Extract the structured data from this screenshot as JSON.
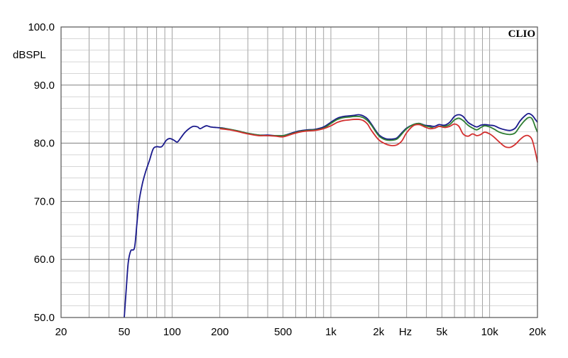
{
  "chart_data": {
    "type": "line",
    "logo": "CLIO",
    "ylabel": "dBSPL",
    "xlabel": "Hz",
    "xscale": "log",
    "xlim": [
      20,
      20000
    ],
    "ylim": [
      50,
      100
    ],
    "grid": true,
    "y_ticks": [
      {
        "value": 100,
        "label": "100.0"
      },
      {
        "value": 90,
        "label": "90.0"
      },
      {
        "value": 80,
        "label": "80.0"
      },
      {
        "value": 70,
        "label": "70.0"
      },
      {
        "value": 60,
        "label": "60.0"
      },
      {
        "value": 50,
        "label": "50.0"
      }
    ],
    "x_ticks": [
      {
        "value": 20,
        "label": "20"
      },
      {
        "value": 50,
        "label": "50"
      },
      {
        "value": 100,
        "label": "100"
      },
      {
        "value": 200,
        "label": "200"
      },
      {
        "value": 500,
        "label": "500"
      },
      {
        "value": 1000,
        "label": "1k"
      },
      {
        "value": 2000,
        "label": "2k"
      },
      {
        "value": 5000,
        "label": "5k"
      },
      {
        "value": 10000,
        "label": "10k"
      },
      {
        "value": 20000,
        "label": "20k"
      }
    ],
    "series": [
      {
        "color": "#1a1a8c",
        "points": [
          [
            50,
            50
          ],
          [
            51.5,
            55
          ],
          [
            53,
            59.5
          ],
          [
            55,
            61.5
          ],
          [
            58,
            62
          ],
          [
            60,
            66
          ],
          [
            62,
            70
          ],
          [
            65,
            73
          ],
          [
            68,
            75
          ],
          [
            72,
            77
          ],
          [
            76,
            79
          ],
          [
            80,
            79.4
          ],
          [
            86,
            79.4
          ],
          [
            92,
            80.5
          ],
          [
            97,
            80.8
          ],
          [
            103,
            80.5
          ],
          [
            108,
            80.2
          ],
          [
            114,
            81
          ],
          [
            120,
            81.8
          ],
          [
            128,
            82.5
          ],
          [
            136,
            82.9
          ],
          [
            145,
            82.8
          ],
          [
            150,
            82.5
          ],
          [
            158,
            82.8
          ],
          [
            165,
            83
          ],
          [
            175,
            82.8
          ],
          [
            190,
            82.7
          ],
          [
            210,
            82.6
          ],
          [
            230,
            82.4
          ],
          [
            260,
            82.1
          ],
          [
            300,
            81.7
          ],
          [
            350,
            81.4
          ],
          [
            400,
            81.4
          ],
          [
            450,
            81.3
          ],
          [
            500,
            81.3
          ],
          [
            560,
            81.7
          ],
          [
            630,
            82.1
          ],
          [
            710,
            82.3
          ],
          [
            800,
            82.4
          ],
          [
            900,
            82.8
          ],
          [
            1000,
            83.6
          ],
          [
            1100,
            84.3
          ],
          [
            1200,
            84.6
          ],
          [
            1300,
            84.7
          ],
          [
            1400,
            84.8
          ],
          [
            1500,
            84.9
          ],
          [
            1600,
            84.7
          ],
          [
            1700,
            84.2
          ],
          [
            1800,
            83.3
          ],
          [
            2000,
            81.5
          ],
          [
            2200,
            80.8
          ],
          [
            2400,
            80.7
          ],
          [
            2600,
            80.9
          ],
          [
            2800,
            81.8
          ],
          [
            3000,
            82.6
          ],
          [
            3300,
            83.2
          ],
          [
            3600,
            83.4
          ],
          [
            3900,
            83.1
          ],
          [
            4200,
            83
          ],
          [
            4500,
            82.9
          ],
          [
            4800,
            83.2
          ],
          [
            5200,
            83.1
          ],
          [
            5600,
            83.6
          ],
          [
            6000,
            84.6
          ],
          [
            6400,
            84.9
          ],
          [
            6800,
            84.6
          ],
          [
            7300,
            83.6
          ],
          [
            7800,
            83.1
          ],
          [
            8300,
            82.8
          ],
          [
            8800,
            83.1
          ],
          [
            9300,
            83.2
          ],
          [
            10000,
            83.1
          ],
          [
            10700,
            83
          ],
          [
            11500,
            82.6
          ],
          [
            12500,
            82.3
          ],
          [
            13500,
            82.2
          ],
          [
            14500,
            82.6
          ],
          [
            15500,
            83.8
          ],
          [
            16500,
            84.6
          ],
          [
            17500,
            85.1
          ],
          [
            18500,
            84.8
          ],
          [
            19500,
            84
          ],
          [
            20000,
            83.6
          ]
        ]
      },
      {
        "color": "#2e7d32",
        "points": [
          [
            200,
            82.6
          ],
          [
            230,
            82.4
          ],
          [
            260,
            82.1
          ],
          [
            300,
            81.7
          ],
          [
            350,
            81.4
          ],
          [
            400,
            81.3
          ],
          [
            450,
            81.3
          ],
          [
            500,
            81.3
          ],
          [
            560,
            81.6
          ],
          [
            630,
            82
          ],
          [
            710,
            82.2
          ],
          [
            800,
            82.3
          ],
          [
            900,
            82.6
          ],
          [
            1000,
            83.4
          ],
          [
            1100,
            84.1
          ],
          [
            1200,
            84.4
          ],
          [
            1300,
            84.5
          ],
          [
            1400,
            84.6
          ],
          [
            1500,
            84.6
          ],
          [
            1600,
            84.4
          ],
          [
            1700,
            83.9
          ],
          [
            1800,
            83.1
          ],
          [
            2000,
            81.3
          ],
          [
            2200,
            80.6
          ],
          [
            2400,
            80.5
          ],
          [
            2600,
            80.7
          ],
          [
            2800,
            81.6
          ],
          [
            3000,
            82.5
          ],
          [
            3300,
            83.2
          ],
          [
            3600,
            83.4
          ],
          [
            3900,
            83
          ],
          [
            4200,
            82.8
          ],
          [
            4500,
            82.6
          ],
          [
            4800,
            82.9
          ],
          [
            5200,
            82.9
          ],
          [
            5600,
            83.2
          ],
          [
            6000,
            84
          ],
          [
            6400,
            84.3
          ],
          [
            6800,
            83.9
          ],
          [
            7300,
            83.1
          ],
          [
            7800,
            82.6
          ],
          [
            8300,
            82.3
          ],
          [
            8800,
            82.7
          ],
          [
            9300,
            83
          ],
          [
            10000,
            82.8
          ],
          [
            10700,
            82.4
          ],
          [
            11500,
            81.9
          ],
          [
            12500,
            81.6
          ],
          [
            13500,
            81.5
          ],
          [
            14500,
            81.8
          ],
          [
            15500,
            82.9
          ],
          [
            16500,
            83.8
          ],
          [
            17500,
            84.4
          ],
          [
            18500,
            84.2
          ],
          [
            19500,
            82.6
          ],
          [
            20000,
            81.9
          ]
        ]
      },
      {
        "color": "#d32f2f",
        "points": [
          [
            200,
            82.5
          ],
          [
            230,
            82.3
          ],
          [
            260,
            82
          ],
          [
            300,
            81.6
          ],
          [
            350,
            81.3
          ],
          [
            400,
            81.3
          ],
          [
            450,
            81.2
          ],
          [
            500,
            81.1
          ],
          [
            560,
            81.5
          ],
          [
            630,
            81.9
          ],
          [
            710,
            82.1
          ],
          [
            800,
            82.2
          ],
          [
            900,
            82.5
          ],
          [
            1000,
            83
          ],
          [
            1100,
            83.6
          ],
          [
            1200,
            83.9
          ],
          [
            1300,
            84
          ],
          [
            1400,
            84.1
          ],
          [
            1500,
            84.1
          ],
          [
            1600,
            83.9
          ],
          [
            1700,
            83.3
          ],
          [
            1800,
            82.2
          ],
          [
            2000,
            80.6
          ],
          [
            2200,
            79.9
          ],
          [
            2400,
            79.6
          ],
          [
            2600,
            79.7
          ],
          [
            2800,
            80.4
          ],
          [
            3000,
            81.8
          ],
          [
            3300,
            83
          ],
          [
            3600,
            83.2
          ],
          [
            3900,
            82.8
          ],
          [
            4200,
            82.5
          ],
          [
            4500,
            82.6
          ],
          [
            4800,
            82.9
          ],
          [
            5200,
            82.7
          ],
          [
            5600,
            82.9
          ],
          [
            6000,
            83.3
          ],
          [
            6400,
            82.9
          ],
          [
            6800,
            81.6
          ],
          [
            7300,
            81.2
          ],
          [
            7800,
            81.6
          ],
          [
            8300,
            81.3
          ],
          [
            8800,
            81.5
          ],
          [
            9300,
            81.9
          ],
          [
            10000,
            81.6
          ],
          [
            10700,
            81
          ],
          [
            11500,
            80.2
          ],
          [
            12500,
            79.4
          ],
          [
            13500,
            79.3
          ],
          [
            14500,
            79.8
          ],
          [
            15500,
            80.6
          ],
          [
            16500,
            81.2
          ],
          [
            17500,
            81.3
          ],
          [
            18500,
            80.6
          ],
          [
            19500,
            78.2
          ],
          [
            20000,
            76.7
          ]
        ]
      }
    ]
  }
}
